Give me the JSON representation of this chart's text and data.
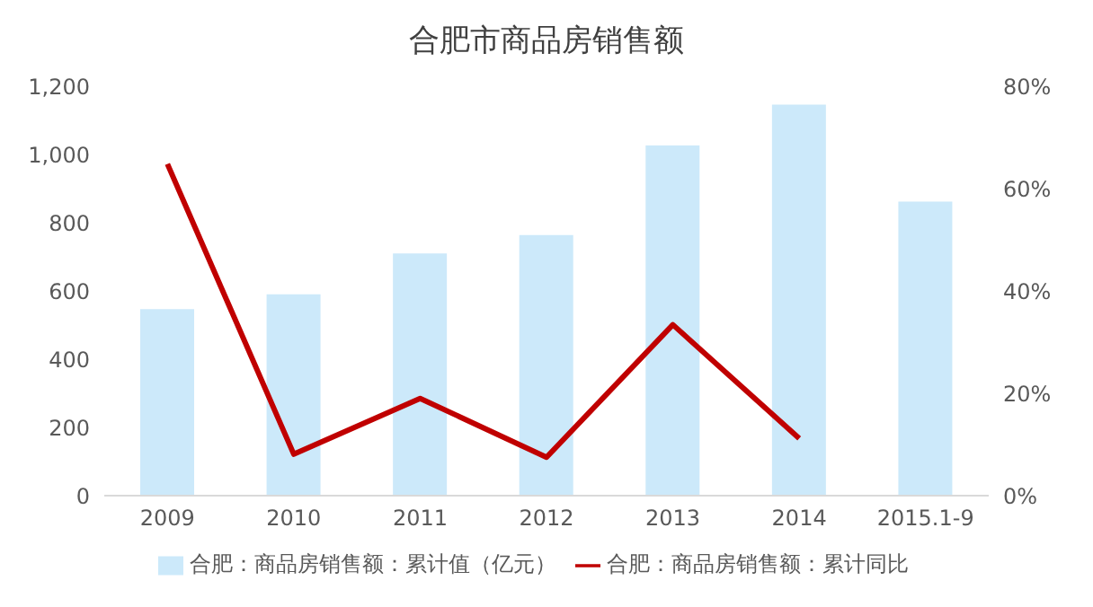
{
  "chart_data": {
    "type": "bar",
    "title": "合肥市商品房销售额",
    "categories": [
      "2009",
      "2010",
      "2011",
      "2012",
      "2013",
      "2014",
      "2015.1-9"
    ],
    "series": [
      {
        "name": "合肥：商品房销售额：累计值（亿元）",
        "color": "#cce9fa",
        "values": [
          547,
          590,
          710,
          764,
          1026,
          1146,
          862
        ]
      },
      {
        "name": "合肥：商品房销售额：累计同比",
        "color": "#c00000",
        "type": "line",
        "axis": "y2",
        "values": [
          64.8,
          8.1,
          19.0,
          7.5,
          33.4,
          11.2,
          null
        ]
      }
    ],
    "ylim": [
      0,
      1200
    ],
    "yticks": [
      {
        "value": 0,
        "label": "0"
      },
      {
        "value": 200,
        "label": "200"
      },
      {
        "value": 400,
        "label": "400"
      },
      {
        "value": 600,
        "label": "600"
      },
      {
        "value": 800,
        "label": "800"
      },
      {
        "value": 1000,
        "label": "1,000"
      },
      {
        "value": 1200,
        "label": "1,200"
      }
    ],
    "y2lim": [
      0,
      80
    ],
    "y2ticks": [
      {
        "value": 0,
        "label": "0%"
      },
      {
        "value": 20,
        "label": "20%"
      },
      {
        "value": 40,
        "label": "40%"
      },
      {
        "value": 60,
        "label": "60%"
      },
      {
        "value": 80,
        "label": "80%"
      }
    ],
    "legend": "bottom",
    "marker": "none"
  }
}
